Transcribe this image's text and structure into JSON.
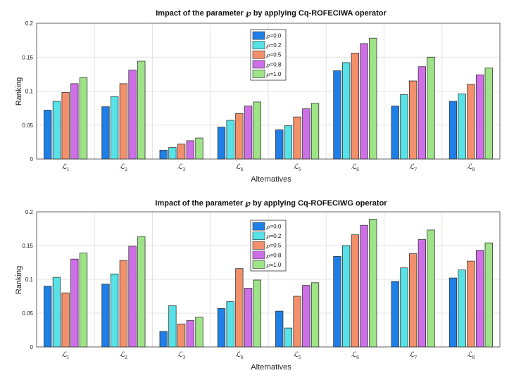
{
  "chart_data": [
    {
      "type": "bar",
      "title": "Impact of the parameter ℘ by applying Cq-ROFECIWA operator",
      "xlabel": "Alternatives",
      "ylabel": "Ranking",
      "ylim": [
        0,
        0.2
      ],
      "yticks": [
        "0",
        "0.05",
        "0.1",
        "0.15",
        "0.2"
      ],
      "grid": true,
      "legend_position": "top-center",
      "categories": [
        "ℒ1",
        "ℒ2",
        "ℒ3",
        "ℒ4",
        "ℒ5",
        "ℒ6",
        "ℒ7",
        "ℒ8"
      ],
      "series": [
        {
          "name": "℘=0.0",
          "color": "#1f7fe8",
          "values": [
            0.072,
            0.077,
            0.013,
            0.047,
            0.043,
            0.13,
            0.078,
            0.085
          ]
        },
        {
          "name": "℘=0.2",
          "color": "#56e2e6",
          "values": [
            0.085,
            0.092,
            0.017,
            0.057,
            0.049,
            0.142,
            0.095,
            0.096
          ]
        },
        {
          "name": "℘=0.5",
          "color": "#f3906c",
          "values": [
            0.098,
            0.111,
            0.022,
            0.067,
            0.062,
            0.156,
            0.115,
            0.11
          ]
        },
        {
          "name": "℘=0.8",
          "color": "#cf6fe8",
          "values": [
            0.111,
            0.131,
            0.027,
            0.078,
            0.074,
            0.17,
            0.136,
            0.124
          ]
        },
        {
          "name": "℘=1.0",
          "color": "#9fe388",
          "values": [
            0.12,
            0.144,
            0.031,
            0.084,
            0.082,
            0.178,
            0.15,
            0.134
          ]
        }
      ]
    },
    {
      "type": "bar",
      "title": "Impact of the parameter ℘ by applying Cq-ROFECIWG operator",
      "xlabel": "Alternatives",
      "ylabel": "Ranking",
      "ylim": [
        0,
        0.2
      ],
      "yticks": [
        "0",
        "0.05",
        "0.1",
        "0.15",
        "0.2"
      ],
      "grid": true,
      "legend_position": "top-center",
      "categories": [
        "ℒ1",
        "ℒ2",
        "ℒ3",
        "ℒ4",
        "ℒ5",
        "ℒ6",
        "ℒ7",
        "ℒ8"
      ],
      "series": [
        {
          "name": "℘=0.0",
          "color": "#1f7fe8",
          "values": [
            0.09,
            0.093,
            0.023,
            0.057,
            0.053,
            0.134,
            0.097,
            0.102
          ]
        },
        {
          "name": "℘=0.2",
          "color": "#56e2e6",
          "values": [
            0.103,
            0.108,
            0.061,
            0.067,
            0.028,
            0.15,
            0.117,
            0.114
          ]
        },
        {
          "name": "℘=0.5",
          "color": "#f3906c",
          "values": [
            0.08,
            0.128,
            0.034,
            0.116,
            0.075,
            0.166,
            0.138,
            0.127
          ]
        },
        {
          "name": "℘=0.8",
          "color": "#cf6fe8",
          "values": [
            0.13,
            0.149,
            0.039,
            0.087,
            0.091,
            0.18,
            0.159,
            0.143
          ]
        },
        {
          "name": "℘=1.0",
          "color": "#9fe388",
          "values": [
            0.139,
            0.163,
            0.044,
            0.099,
            0.095,
            0.189,
            0.173,
            0.154
          ]
        }
      ]
    }
  ]
}
